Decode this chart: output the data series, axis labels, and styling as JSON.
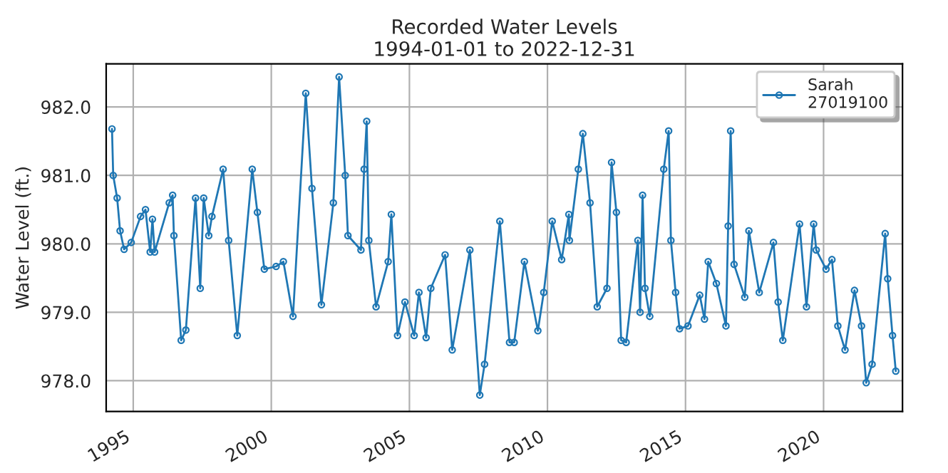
{
  "chart_data": {
    "type": "line",
    "title": "Recorded Water Levels",
    "subtitle": "1994-01-01 to 2022-12-31",
    "ylabel": "Water Level (ft.)",
    "x": [
      "1994-03-26",
      "1994-04-11",
      "1994-06-02",
      "1994-07-11",
      "1994-09-02",
      "1994-12-05",
      "1995-04-08",
      "1995-06-12",
      "1995-08-13",
      "1995-09-12",
      "1995-10-11",
      "1996-04-21",
      "1996-06-05",
      "1996-06-22",
      "1996-09-26",
      "1996-11-27",
      "1997-04-04",
      "1997-06-05",
      "1997-07-21",
      "1997-09-26",
      "1997-11-07",
      "1998-04-04",
      "1998-06-16",
      "1998-10-08",
      "1999-04-24",
      "1999-07-01",
      "1999-10-01",
      "2000-03-05",
      "2000-06-09",
      "2000-10-14",
      "2001-04-01",
      "2001-06-22",
      "2001-10-25",
      "2002-04-01",
      "2002-06-16",
      "2002-09-05",
      "2002-10-11",
      "2003-04-01",
      "2003-05-13",
      "2003-06-16",
      "2003-07-14",
      "2003-10-18",
      "2004-03-26",
      "2004-05-07",
      "2004-07-28",
      "2004-11-03",
      "2005-03-05",
      "2005-05-07",
      "2005-08-10",
      "2005-10-11",
      "2006-04-18",
      "2006-07-21",
      "2007-03-12",
      "2007-07-21",
      "2007-09-22",
      "2008-04-11",
      "2008-08-17",
      "2008-10-18",
      "2009-03-02",
      "2009-08-27",
      "2009-11-13",
      "2010-03-05",
      "2010-07-08",
      "2010-10-11",
      "2010-10-18",
      "2011-02-13",
      "2011-04-14",
      "2011-07-18",
      "2011-10-21",
      "2012-02-27",
      "2012-04-28",
      "2012-07-01",
      "2012-09-02",
      "2012-11-07",
      "2013-04-11",
      "2013-05-10",
      "2013-06-12",
      "2013-07-14",
      "2013-09-15",
      "2014-03-19",
      "2014-05-23",
      "2014-06-22",
      "2014-08-23",
      "2014-10-14",
      "2015-02-03",
      "2015-07-08",
      "2015-09-09",
      "2015-10-28",
      "2016-02-13",
      "2016-06-19",
      "2016-07-18",
      "2016-08-20",
      "2016-10-04",
      "2017-02-23",
      "2017-04-18",
      "2017-09-02",
      "2018-03-09",
      "2018-05-10",
      "2018-07-11",
      "2019-02-17",
      "2019-05-20",
      "2019-08-23",
      "2019-09-26",
      "2020-02-03",
      "2020-04-21",
      "2020-07-08",
      "2020-10-11",
      "2021-02-13",
      "2021-05-17",
      "2021-07-18",
      "2021-10-04",
      "2022-03-26",
      "2022-04-28",
      "2022-07-01",
      "2022-08-13"
    ],
    "series": [
      {
        "name": "Sarah\n27019100",
        "color": "#1f77b4",
        "values": [
          981.68,
          981.0,
          980.67,
          980.19,
          979.92,
          980.02,
          980.4,
          980.5,
          979.88,
          980.36,
          979.88,
          980.6,
          980.71,
          980.12,
          978.59,
          978.74,
          980.67,
          979.35,
          980.67,
          980.12,
          980.4,
          981.09,
          980.05,
          978.66,
          981.09,
          980.46,
          979.63,
          979.67,
          979.74,
          978.94,
          982.2,
          980.81,
          979.11,
          980.6,
          982.44,
          981.0,
          980.12,
          979.91,
          981.09,
          981.79,
          980.05,
          979.08,
          979.74,
          980.43,
          978.66,
          979.15,
          978.66,
          979.29,
          978.63,
          979.35,
          979.84,
          978.45,
          979.91,
          977.79,
          978.24,
          980.33,
          978.56,
          978.56,
          979.74,
          978.73,
          979.29,
          980.33,
          979.77,
          980.43,
          980.05,
          981.09,
          981.61,
          980.6,
          979.08,
          979.35,
          981.19,
          980.46,
          978.59,
          978.56,
          980.05,
          979.0,
          980.71,
          979.35,
          978.94,
          981.09,
          981.65,
          980.05,
          979.29,
          978.76,
          978.8,
          979.25,
          978.9,
          979.74,
          979.42,
          978.8,
          980.26,
          981.65,
          979.7,
          979.22,
          980.19,
          979.29,
          980.02,
          979.15,
          978.59,
          980.29,
          979.08,
          980.29,
          979.91,
          979.63,
          979.77,
          978.8,
          978.45,
          979.32,
          978.8,
          977.97,
          978.24,
          980.15,
          979.49,
          978.66,
          978.14
        ]
      }
    ],
    "xlim": [
      "1994-01-08",
      "2022-11-10"
    ],
    "xticks": [
      {
        "value": "1995-01-01",
        "label": "1995"
      },
      {
        "value": "2000-01-01",
        "label": "2000"
      },
      {
        "value": "2005-01-01",
        "label": "2005"
      },
      {
        "value": "2010-01-01",
        "label": "2010"
      },
      {
        "value": "2015-01-01",
        "label": "2015"
      },
      {
        "value": "2020-01-01",
        "label": "2020"
      }
    ],
    "ylim": [
      977.55,
      982.63
    ],
    "yticks": [
      {
        "value": 978,
        "label": "978.0"
      },
      {
        "value": 979,
        "label": "979.0"
      },
      {
        "value": 980,
        "label": "980.0"
      },
      {
        "value": 981,
        "label": "981.0"
      },
      {
        "value": 982,
        "label": "982.0"
      }
    ],
    "grid": true,
    "legend": "top right",
    "marker": "circle",
    "line_style": "solid"
  }
}
